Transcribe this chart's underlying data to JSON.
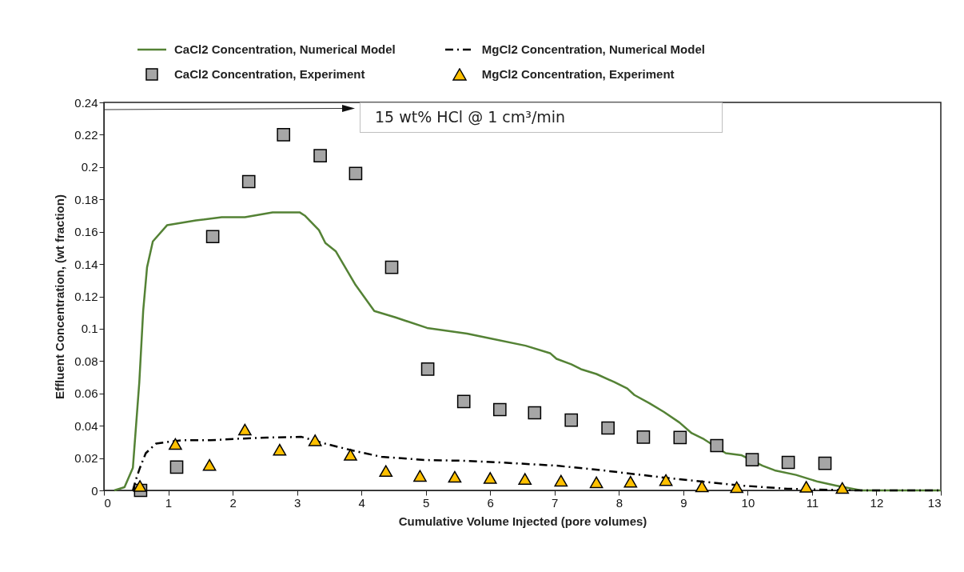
{
  "chart_data": {
    "type": "line",
    "xlabel": "Cumulative Volume Injected (pore volumes)",
    "ylabel": "Effluent Concentration, (wt fraction)",
    "xlim": [
      0,
      13
    ],
    "xticks": [
      0,
      1,
      2,
      3,
      4,
      5,
      6,
      7,
      8,
      9,
      10,
      11,
      12,
      13
    ],
    "ylim": [
      0,
      0.24
    ],
    "yticks": [
      0,
      0.02,
      0.04,
      0.06,
      0.08,
      0.1,
      0.12,
      0.14,
      0.16,
      0.18,
      0.2,
      0.22,
      0.24
    ],
    "grid": false,
    "legend": "top",
    "annotations": [
      "15 wt% HCl @ 1 cm³/min"
    ],
    "series": [
      {
        "name": "CaCl2 Concentration, Numerical Model",
        "type": "line",
        "line_style": "solid",
        "color": "#548235",
        "x": [
          0.16,
          0.32,
          0.45,
          0.55,
          0.61,
          0.67,
          0.76,
          0.98,
          1.43,
          1.83,
          2.19,
          2.62,
          3.04,
          3.12,
          3.34,
          3.44,
          3.6,
          3.91,
          4.2,
          4.53,
          5.02,
          5.64,
          6.0,
          6.55,
          6.93,
          7.03,
          7.26,
          7.41,
          7.65,
          7.93,
          8.13,
          8.24,
          8.47,
          8.7,
          8.94,
          9.13,
          9.32,
          9.66,
          9.9,
          10.23,
          10.42,
          10.75,
          11.09,
          11.37,
          11.76,
          13
        ],
        "values": [
          0,
          0.002,
          0.014,
          0.067,
          0.111,
          0.138,
          0.154,
          0.164,
          0.167,
          0.169,
          0.169,
          0.172,
          0.172,
          0.17,
          0.161,
          0.153,
          0.148,
          0.127,
          0.111,
          0.107,
          0.1005,
          0.097,
          0.094,
          0.0895,
          0.0849,
          0.0814,
          0.078,
          0.075,
          0.072,
          0.067,
          0.063,
          0.059,
          0.054,
          0.0485,
          0.042,
          0.0354,
          0.0317,
          0.023,
          0.0218,
          0.0153,
          0.0124,
          0.0096,
          0.0054,
          0.003,
          0,
          0
        ]
      },
      {
        "name": "MgCl2 Concentration, Numerical Model",
        "type": "line",
        "line_style": "dashdot",
        "color": "#000000",
        "x": [
          0.45,
          0.5,
          0.56,
          0.65,
          0.81,
          1.2,
          1.65,
          2.1,
          2.53,
          3.07,
          3.43,
          3.86,
          4.31,
          4.98,
          5.64,
          6.2,
          7.03,
          7.75,
          8.7,
          9.9,
          10.62,
          11.7,
          13
        ],
        "values": [
          0,
          0.007,
          0.014,
          0.023,
          0.029,
          0.031,
          0.031,
          0.032,
          0.0327,
          0.0331,
          0.029,
          0.0247,
          0.0208,
          0.0188,
          0.0183,
          0.0172,
          0.0153,
          0.0124,
          0.0079,
          0.003,
          0.001,
          0,
          0
        ]
      },
      {
        "name": "CaCl2 Concentration, Experiment",
        "type": "scatter",
        "marker": "square",
        "color": "#a6a6a6",
        "x": [
          0.57,
          1.13,
          1.69,
          2.25,
          2.79,
          3.36,
          3.91,
          4.47,
          5.03,
          5.59,
          6.15,
          6.69,
          7.26,
          7.83,
          8.38,
          8.95,
          9.52,
          10.07,
          10.63,
          11.2
        ],
        "values": [
          0,
          0.0144,
          0.157,
          0.191,
          0.22,
          0.207,
          0.196,
          0.138,
          0.075,
          0.055,
          0.05,
          0.048,
          0.0435,
          0.0386,
          0.033,
          0.0327,
          0.0277,
          0.019,
          0.0173,
          0.0168
        ]
      },
      {
        "name": "MgCl2 Concentration, Experiment",
        "type": "scatter",
        "marker": "triangle",
        "color": "#ffc000",
        "x": [
          0.56,
          1.11,
          1.64,
          2.19,
          2.73,
          3.28,
          3.83,
          4.38,
          4.91,
          5.45,
          6.0,
          6.54,
          7.1,
          7.65,
          8.18,
          8.73,
          9.29,
          9.83,
          10.91,
          11.47
        ],
        "values": [
          0.0027,
          0.0287,
          0.0158,
          0.0376,
          0.0252,
          0.031,
          0.022,
          0.012,
          0.009,
          0.0084,
          0.0077,
          0.0071,
          0.006,
          0.005,
          0.0054,
          0.0064,
          0.0025,
          0.002,
          0.0022,
          0.0015
        ]
      }
    ]
  }
}
